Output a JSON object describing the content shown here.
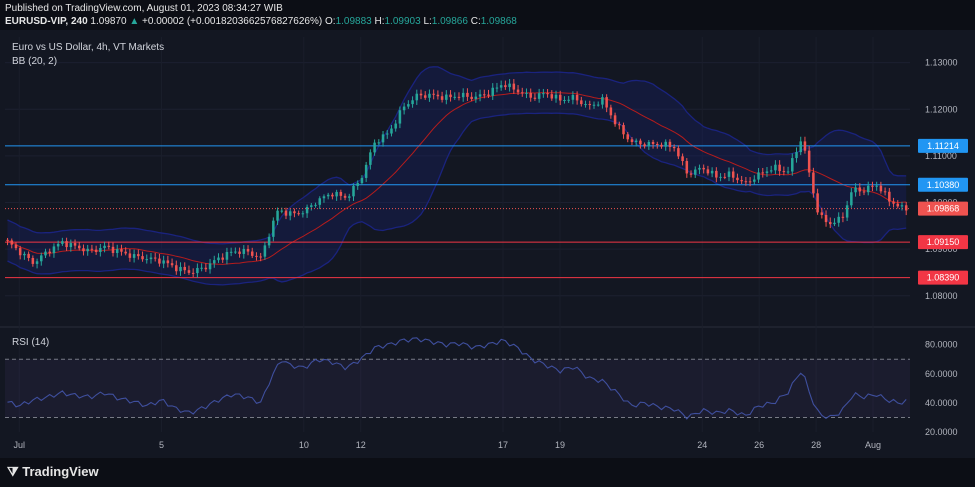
{
  "header": {
    "published": "Published on TradingView.com, August 01, 2023 08:34:27 WIB",
    "symbol": "EURUSD-VIP, 240",
    "last": "1.09870",
    "change": "+0.00002 (+0.0018203662576827626%)",
    "o_label": "O:",
    "o": "1.09883",
    "h_label": "H:",
    "h": "1.09903",
    "l_label": "L:",
    "l": "1.09866",
    "c_label": "C:",
    "c": "1.09868"
  },
  "legend": {
    "title": "Euro vs US Dollar, 4h, VT Markets",
    "bb": "BB (20, 2)",
    "rsi": "RSI (14)"
  },
  "footer": {
    "logo": "TradingView"
  },
  "colors": {
    "up": "#26a69a",
    "down": "#ef5350",
    "blue_level": "#2196f3",
    "red_level": "#f23645",
    "band": "#1a237e",
    "basis": "#b71c1c",
    "rsi_line": "#3f4f9e"
  },
  "chart_data": [
    {
      "type": "candlestick",
      "ylim": [
        1.0748,
        1.1355
      ],
      "yticks": [
        "1.13000",
        "1.12000",
        "1.11000",
        "1.10000",
        "1.09000",
        "1.08000"
      ],
      "xlabels": [
        "Jul",
        "5",
        "10",
        "12",
        "17",
        "19",
        "24",
        "26",
        "28",
        "Aug"
      ],
      "xlabel_pos": [
        0.5,
        5.5,
        10.5,
        12.5,
        17.5,
        19.5,
        24.5,
        26.5,
        28.5,
        30.5
      ],
      "ndays": 31.8,
      "levels": [
        {
          "value": 1.11214,
          "label": "1.11214",
          "color": "#2196f3"
        },
        {
          "value": 1.1038,
          "label": "1.10380",
          "color": "#2196f3"
        },
        {
          "value": 1.0915,
          "label": "1.09150",
          "color": "#f23645"
        },
        {
          "value": 1.0839,
          "label": "1.08390",
          "color": "#f23645"
        }
      ],
      "last_price": {
        "value": 1.09868,
        "label": "1.09868"
      },
      "anchors": [
        [
          0,
          1.092
        ],
        [
          0.5,
          1.0895
        ],
        [
          1.0,
          1.087
        ],
        [
          1.5,
          1.0895
        ],
        [
          2.0,
          1.0915
        ],
        [
          2.5,
          1.0905
        ],
        [
          3.0,
          1.0895
        ],
        [
          3.5,
          1.0905
        ],
        [
          4.0,
          1.0895
        ],
        [
          4.5,
          1.0885
        ],
        [
          5.0,
          1.088
        ],
        [
          5.5,
          1.0875
        ],
        [
          6.0,
          1.086
        ],
        [
          6.5,
          1.085
        ],
        [
          7.0,
          1.086
        ],
        [
          7.5,
          1.088
        ],
        [
          8.0,
          1.0895
        ],
        [
          8.5,
          1.0895
        ],
        [
          9.0,
          1.088
        ],
        [
          9.2,
          1.092
        ],
        [
          9.6,
          1.0985
        ],
        [
          10.0,
          1.0975
        ],
        [
          10.5,
          1.098
        ],
        [
          11.0,
          1.1005
        ],
        [
          11.5,
          1.102
        ],
        [
          12.0,
          1.101
        ],
        [
          12.5,
          1.105
        ],
        [
          13.0,
          1.113
        ],
        [
          13.5,
          1.115
        ],
        [
          14.0,
          1.1205
        ],
        [
          14.5,
          1.123
        ],
        [
          15.0,
          1.123
        ],
        [
          15.5,
          1.1225
        ],
        [
          16.0,
          1.123
        ],
        [
          16.5,
          1.1225
        ],
        [
          17.0,
          1.1235
        ],
        [
          17.5,
          1.1255
        ],
        [
          18.0,
          1.124
        ],
        [
          18.5,
          1.1225
        ],
        [
          19.0,
          1.1235
        ],
        [
          19.5,
          1.122
        ],
        [
          20.0,
          1.1225
        ],
        [
          20.5,
          1.1205
        ],
        [
          21.0,
          1.122
        ],
        [
          21.5,
          1.1165
        ],
        [
          22.0,
          1.113
        ],
        [
          22.5,
          1.1125
        ],
        [
          23.0,
          1.1125
        ],
        [
          23.5,
          1.112
        ],
        [
          24.0,
          1.106
        ],
        [
          24.5,
          1.1075
        ],
        [
          25.0,
          1.1055
        ],
        [
          25.5,
          1.106
        ],
        [
          26.0,
          1.104
        ],
        [
          26.5,
          1.106
        ],
        [
          27.0,
          1.1075
        ],
        [
          27.5,
          1.1065
        ],
        [
          28.0,
          1.114
        ],
        [
          28.3,
          1.105
        ],
        [
          28.6,
          1.097
        ],
        [
          29.0,
          1.0955
        ],
        [
          29.4,
          1.0965
        ],
        [
          29.8,
          1.103
        ],
        [
          30.2,
          1.1025
        ],
        [
          30.6,
          1.104
        ],
        [
          31.0,
          1.101
        ],
        [
          31.4,
          1.099
        ],
        [
          31.7,
          1.0987
        ]
      ],
      "rsi": {
        "ylim": [
          20,
          88
        ],
        "yticks": [
          "80.0000",
          "60.0000",
          "40.0000",
          "20.0000"
        ],
        "overbought": 70,
        "oversold": 30,
        "anchors": [
          [
            0,
            41
          ],
          [
            0.5,
            38
          ],
          [
            1.0,
            42
          ],
          [
            1.5,
            44
          ],
          [
            2.0,
            47
          ],
          [
            2.5,
            45
          ],
          [
            3.0,
            44
          ],
          [
            3.5,
            47
          ],
          [
            4.0,
            43
          ],
          [
            4.5,
            41
          ],
          [
            5.0,
            38
          ],
          [
            5.5,
            42
          ],
          [
            6.0,
            36
          ],
          [
            6.5,
            33
          ],
          [
            7.0,
            37
          ],
          [
            7.5,
            42
          ],
          [
            8.0,
            46
          ],
          [
            8.5,
            44
          ],
          [
            9.0,
            40
          ],
          [
            9.3,
            55
          ],
          [
            9.7,
            70
          ],
          [
            10.0,
            66
          ],
          [
            10.5,
            64
          ],
          [
            11.0,
            70
          ],
          [
            11.5,
            68
          ],
          [
            12.0,
            64
          ],
          [
            12.5,
            70
          ],
          [
            13.0,
            78
          ],
          [
            13.5,
            80
          ],
          [
            14.0,
            83
          ],
          [
            14.5,
            84
          ],
          [
            15.0,
            82
          ],
          [
            15.5,
            80
          ],
          [
            16.0,
            81
          ],
          [
            16.5,
            78
          ],
          [
            17.0,
            80
          ],
          [
            17.5,
            83
          ],
          [
            18.0,
            78
          ],
          [
            18.5,
            70
          ],
          [
            19.0,
            66
          ],
          [
            19.5,
            62
          ],
          [
            20.0,
            65
          ],
          [
            20.5,
            57
          ],
          [
            21.0,
            55
          ],
          [
            21.5,
            47
          ],
          [
            22.0,
            38
          ],
          [
            22.5,
            40
          ],
          [
            23.0,
            37
          ],
          [
            23.5,
            36
          ],
          [
            24.0,
            30
          ],
          [
            24.5,
            35
          ],
          [
            25.0,
            33
          ],
          [
            25.5,
            35
          ],
          [
            26.0,
            31
          ],
          [
            26.5,
            38
          ],
          [
            27.0,
            40
          ],
          [
            27.5,
            47
          ],
          [
            28.0,
            63
          ],
          [
            28.3,
            45
          ],
          [
            28.6,
            32
          ],
          [
            29.0,
            30
          ],
          [
            29.4,
            34
          ],
          [
            29.8,
            46
          ],
          [
            30.2,
            44
          ],
          [
            30.6,
            46
          ],
          [
            31.0,
            42
          ],
          [
            31.4,
            40
          ],
          [
            31.7,
            41
          ]
        ]
      }
    }
  ]
}
